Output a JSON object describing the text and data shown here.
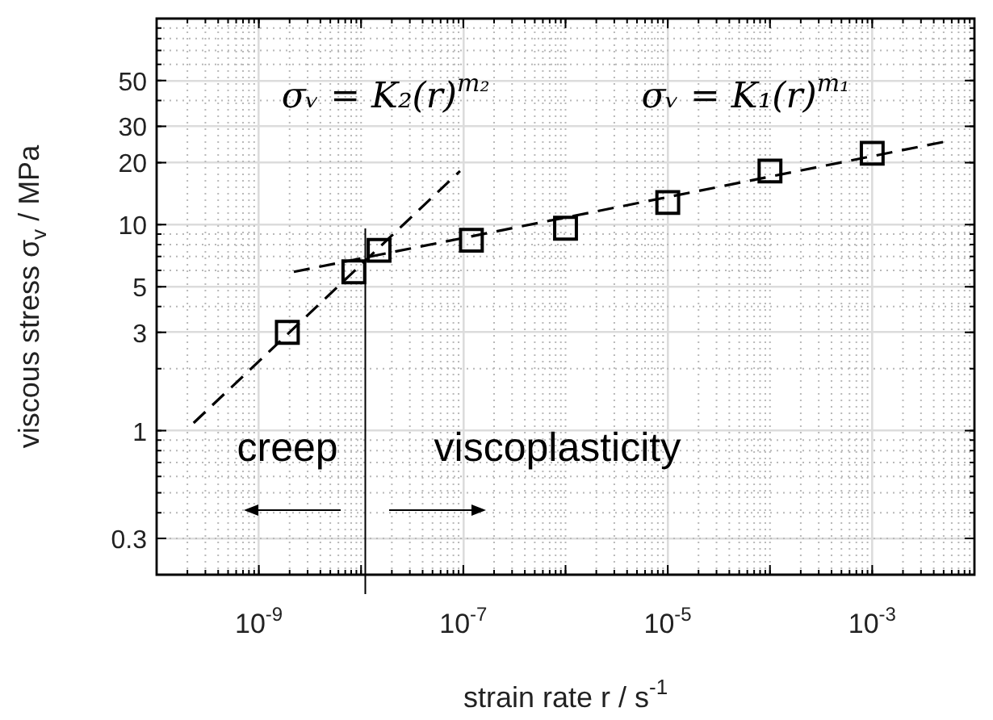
{
  "chart_data": {
    "type": "scatter",
    "xlabel": "strain rate r / s$^{-1}$",
    "ylabel": "viscous stress σ$_{v}$ / MPa",
    "annotations": [
      "σᵥ = K₂(r)$^{m₂}$",
      "σᵥ = K₁(r)$^{m₁}$",
      "creep",
      "viscoplasticity"
    ],
    "series": [
      {
        "color": "#000000",
        "marker": "square",
        "x": [
          1.9e-09,
          8.5e-09,
          1.5e-08,
          1.2e-07,
          1e-06,
          1e-05,
          0.0001,
          0.001
        ],
        "values": [
          3.0,
          5.9,
          7.5,
          8.4,
          9.6,
          12.8,
          18.2,
          22.2
        ]
      },
      {
        "type": "line",
        "color": "#000000",
        "marker": "none",
        "line_style": "dashed",
        "x": [
          2.3e-10,
          9.3e-08
        ],
        "values": [
          1.09,
          18.2
        ]
      },
      {
        "type": "line",
        "color": "#000000",
        "marker": "none",
        "line_style": "dashed",
        "x": [
          2.2e-09,
          0.005
        ],
        "values": [
          5.9,
          25.2
        ]
      }
    ],
    "ref_lines": [
      {
        "axis": "x",
        "value": 1.1e-08,
        "color": "#000000"
      }
    ],
    "log": "xy",
    "grid": true,
    "xlim": [
      1e-10,
      0.01
    ],
    "ylim": [
      0.2,
      100
    ],
    "xticks": [
      {
        "value": 1e-10,
        "label": null
      },
      {
        "value": 1e-09,
        "label": "10$^{-9}$"
      },
      {
        "value": 1e-08,
        "label": null
      },
      {
        "value": 1e-07,
        "label": "10$^{-7}$"
      },
      {
        "value": 1e-06,
        "label": null
      },
      {
        "value": 1e-05,
        "label": "10$^{-5}$"
      },
      {
        "value": 0.0001,
        "label": null
      },
      {
        "value": 0.001,
        "label": "10$^{-3}$"
      },
      {
        "value": 0.01,
        "label": null
      }
    ],
    "yticks": [
      0.3,
      1,
      3,
      5,
      10,
      20,
      30,
      50
    ]
  }
}
